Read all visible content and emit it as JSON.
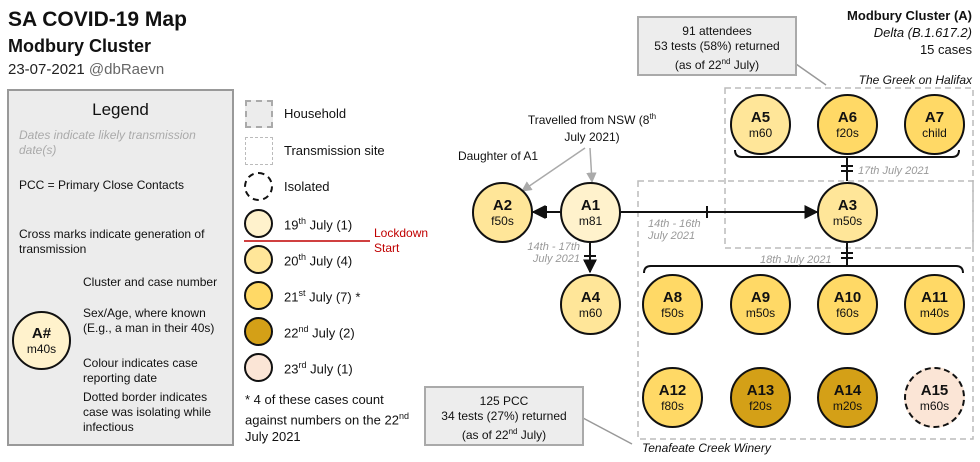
{
  "header": {
    "title": "SA COVID-19 Map",
    "subtitle": "Modbury Cluster",
    "date": "23-07-2021",
    "handle": "@dbRaevn"
  },
  "cluster_info": {
    "name": "Modbury Cluster (A)",
    "variant": "Delta (B.1.617.2)",
    "cases": "15 cases"
  },
  "legend": {
    "title": "Legend",
    "dates_note": "Dates indicate likely transmission date(s)",
    "pcc_note": "PCC = Primary Close Contacts",
    "cross_note": "Cross marks indicate generation of transmission",
    "example_node": {
      "id": "A#",
      "sub": "m40s"
    },
    "explain_cluster": "Cluster and case number",
    "explain_age": "Sex/Age, where known (E.g., a man in their 40s)",
    "explain_colour": "Colour indicates case reporting date",
    "explain_dotted": "Dotted border indicates case was isolating while infectious"
  },
  "key": {
    "household": "Household",
    "transmission_site": "Transmission site",
    "isolated": "Isolated",
    "dates": [
      {
        "day": "19",
        "suffix": "th",
        "rest": " July (1)",
        "color": "#fff2cc"
      },
      {
        "day": "20",
        "suffix": "th",
        "rest": " July (4)",
        "color": "#ffe699"
      },
      {
        "day": "21",
        "suffix": "st",
        "rest": " July (7) *",
        "color": "#ffd966"
      },
      {
        "day": "22",
        "suffix": "nd",
        "rest": " July (2)",
        "color": "#d4a017"
      },
      {
        "day": "23",
        "suffix": "rd",
        "rest": " July (1)",
        "color": "#fbe5d6"
      }
    ],
    "lockdown": "Lockdown Start",
    "footnote_pre": "* 4 of these cases count against numbers on the ",
    "footnote_day": "22",
    "footnote_sup": "nd",
    "footnote_post": " July 2021"
  },
  "annotations": {
    "daughter": "Daughter of A1",
    "travelled_pre": "Travelled from NSW (",
    "travelled_day": "8",
    "travelled_sup": "th",
    "travelled_post": " July 2021)",
    "a1_a4_dates": "14th - 17th July 2021",
    "a1_a3_dates": "14th - 16th July 2021",
    "greek_date": "17th July 2021",
    "winery_date": "18th July 2021"
  },
  "sites": {
    "greek": "The Greek on Halifax",
    "winery": "Tenafeate Creek Winery"
  },
  "infoboxes": {
    "greek_attendees": "91 attendees",
    "greek_tests": "53 tests (58%) returned",
    "greek_asof_pre": "(as of 22",
    "greek_asof_sup": "nd",
    "greek_asof_post": " July)",
    "winery_pcc": "125 PCC",
    "winery_tests": "34 tests (27%) returned",
    "winery_asof_pre": "(as of 22",
    "winery_asof_sup": "nd",
    "winery_asof_post": " July)"
  },
  "cases": [
    {
      "id": "A1",
      "sub": "m81",
      "color": "#fff2cc"
    },
    {
      "id": "A2",
      "sub": "f50s",
      "color": "#ffe699"
    },
    {
      "id": "A3",
      "sub": "m50s",
      "color": "#ffe699"
    },
    {
      "id": "A4",
      "sub": "m60",
      "color": "#ffe699"
    },
    {
      "id": "A5",
      "sub": "m60",
      "color": "#ffe699"
    },
    {
      "id": "A6",
      "sub": "f20s",
      "color": "#ffd966"
    },
    {
      "id": "A7",
      "sub": "child",
      "color": "#ffd966"
    },
    {
      "id": "A8",
      "sub": "f50s",
      "color": "#ffd966"
    },
    {
      "id": "A9",
      "sub": "m50s",
      "color": "#ffd966"
    },
    {
      "id": "A10",
      "sub": "f60s",
      "color": "#ffd966"
    },
    {
      "id": "A11",
      "sub": "m40s",
      "color": "#ffd966"
    },
    {
      "id": "A12",
      "sub": "f80s",
      "color": "#ffd966"
    },
    {
      "id": "A13",
      "sub": "f20s",
      "color": "#d4a017"
    },
    {
      "id": "A14",
      "sub": "m20s",
      "color": "#d4a017"
    },
    {
      "id": "A15",
      "sub": "m60s",
      "color": "#fbe5d6"
    }
  ]
}
